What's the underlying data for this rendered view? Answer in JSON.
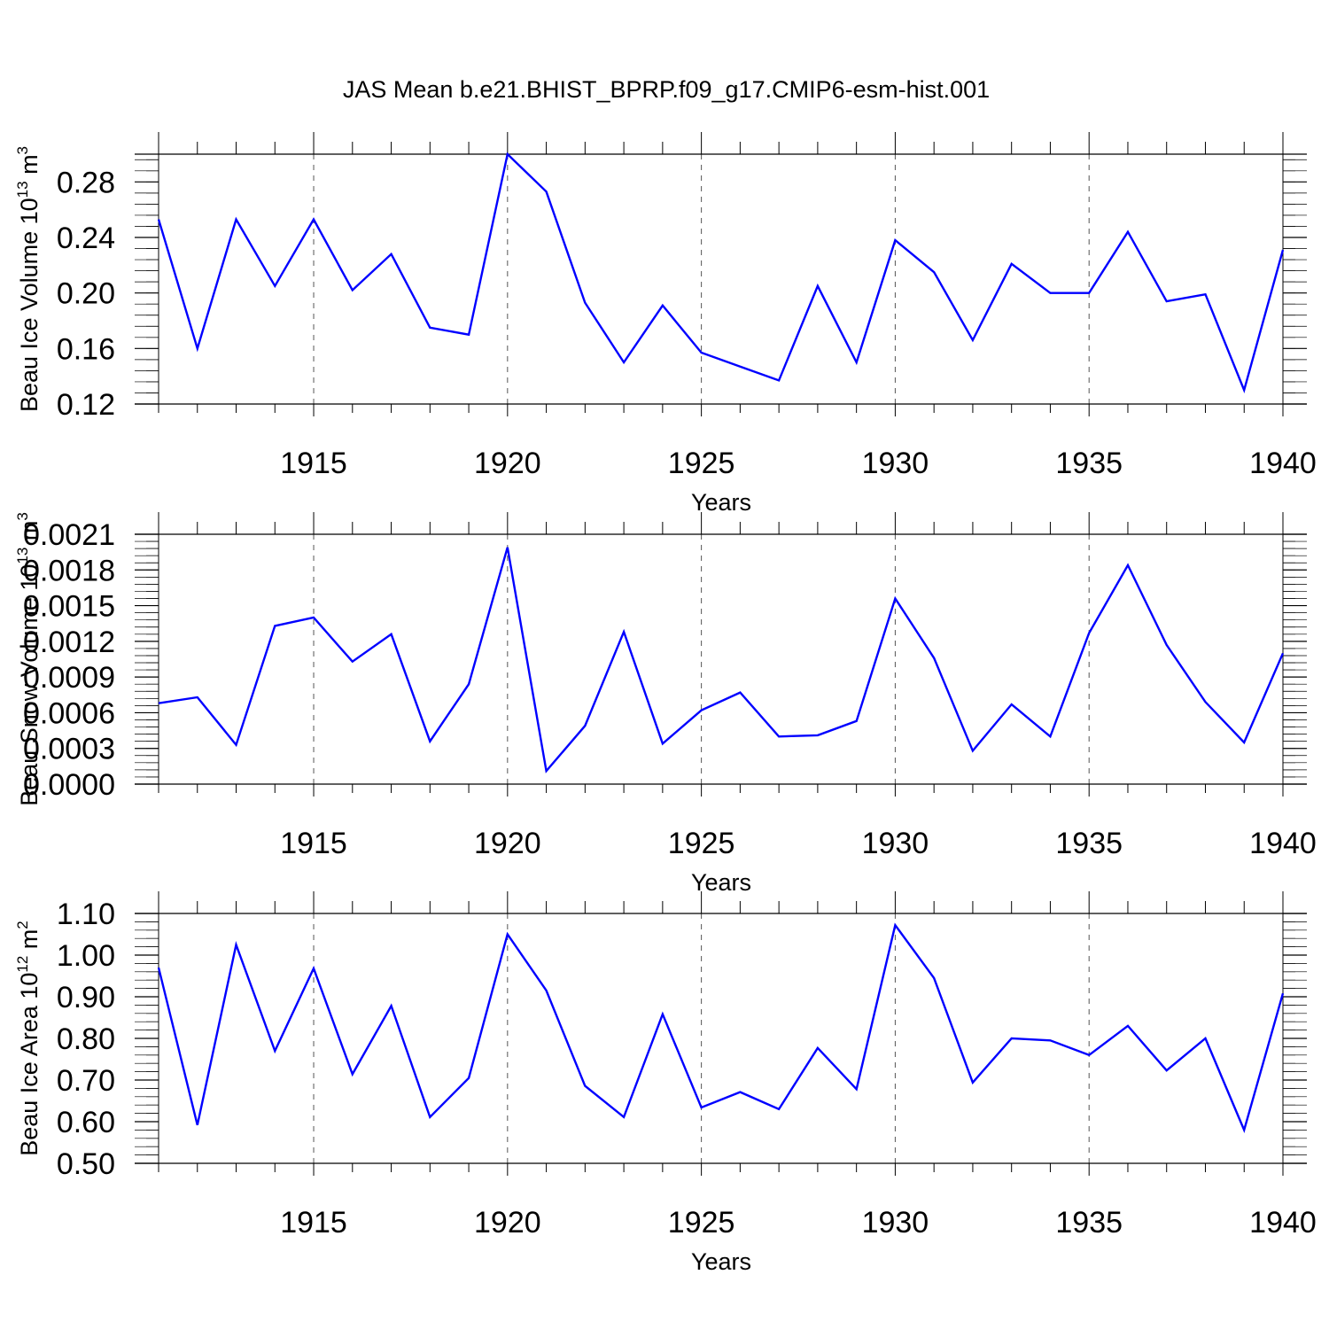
{
  "title": "JAS Mean b.e21.BHIST_BPRP.f09_g17.CMIP6-esm-hist.001",
  "line_color": "#0000ff",
  "chart_data": [
    {
      "type": "line",
      "ylabel": "Beau Ice Volume 10",
      "ylabel_sup": "13",
      "ylabel_unit": " m",
      "ylabel_unit_sup": "3",
      "xlabel": "Years",
      "xlim": [
        1911,
        1940
      ],
      "ylim": [
        0.12,
        0.3
      ],
      "yticks": [
        0.12,
        0.16,
        0.2,
        0.24,
        0.28
      ],
      "ytick_labels": [
        "0.12",
        "0.16",
        "0.20",
        "0.24",
        "0.28"
      ],
      "xticks": [
        1915,
        1920,
        1925,
        1930,
        1935,
        1940
      ],
      "xtick_labels": [
        "1915",
        "1920",
        "1925",
        "1930",
        "1935",
        "1940"
      ],
      "grid": "vertical dashed at major x ticks",
      "series": [
        {
          "x": [
            1911,
            1912,
            1913,
            1914,
            1915,
            1916,
            1917,
            1918,
            1919,
            1920,
            1921,
            1922,
            1923,
            1924,
            1925,
            1926,
            1927,
            1928,
            1929,
            1930,
            1931,
            1932,
            1933,
            1934,
            1935,
            1936,
            1937,
            1938,
            1939,
            1940
          ],
          "values": [
            0.253,
            0.16,
            0.253,
            0.205,
            0.253,
            0.202,
            0.228,
            0.175,
            0.17,
            0.3,
            0.273,
            0.193,
            0.15,
            0.191,
            0.157,
            0.147,
            0.137,
            0.205,
            0.15,
            0.238,
            0.215,
            0.166,
            0.221,
            0.2,
            0.2,
            0.244,
            0.194,
            0.199,
            0.13,
            0.231
          ]
        }
      ]
    },
    {
      "type": "line",
      "ylabel": "Beau Snow Volume 10",
      "ylabel_sup": "13",
      "ylabel_unit": " m",
      "ylabel_unit_sup": "3",
      "xlabel": "Years",
      "xlim": [
        1911,
        1940
      ],
      "ylim": [
        0.0,
        0.0021
      ],
      "yticks": [
        0.0,
        0.0003,
        0.0006,
        0.0009,
        0.0012,
        0.0015,
        0.0018,
        0.0021
      ],
      "ytick_labels": [
        "0.0000",
        "0.0003",
        "0.0006",
        "0.0009",
        "0.0012",
        "0.0015",
        "0.0018",
        "0.0021"
      ],
      "xticks": [
        1915,
        1920,
        1925,
        1930,
        1935,
        1940
      ],
      "xtick_labels": [
        "1915",
        "1920",
        "1925",
        "1930",
        "1935",
        "1940"
      ],
      "grid": "vertical dashed at major x ticks",
      "series": [
        {
          "x": [
            1911,
            1912,
            1913,
            1914,
            1915,
            1916,
            1917,
            1918,
            1919,
            1920,
            1921,
            1922,
            1923,
            1924,
            1925,
            1926,
            1927,
            1928,
            1929,
            1930,
            1931,
            1932,
            1933,
            1934,
            1935,
            1936,
            1937,
            1938,
            1939,
            1940
          ],
          "values": [
            0.00068,
            0.00073,
            0.00033,
            0.00133,
            0.0014,
            0.00103,
            0.00126,
            0.00036,
            0.00084,
            0.00199,
            0.00011,
            0.00049,
            0.00128,
            0.00034,
            0.00062,
            0.00077,
            0.0004,
            0.00041,
            0.00053,
            0.00156,
            0.00106,
            0.00028,
            0.00067,
            0.0004,
            0.00127,
            0.00184,
            0.00117,
            0.00069,
            0.00035,
            0.0011
          ]
        }
      ]
    },
    {
      "type": "line",
      "ylabel": "Beau Ice Area 10",
      "ylabel_sup": "12",
      "ylabel_unit": " m",
      "ylabel_unit_sup": "2",
      "xlabel": "Years",
      "xlim": [
        1911,
        1940
      ],
      "ylim": [
        0.5,
        1.1
      ],
      "yticks": [
        0.5,
        0.6,
        0.7,
        0.8,
        0.9,
        1.0,
        1.1
      ],
      "ytick_labels": [
        "0.50",
        "0.60",
        "0.70",
        "0.80",
        "0.90",
        "1.00",
        "1.10"
      ],
      "xticks": [
        1915,
        1920,
        1925,
        1930,
        1935,
        1940
      ],
      "xtick_labels": [
        "1915",
        "1920",
        "1925",
        "1930",
        "1935",
        "1940"
      ],
      "grid": "vertical dashed at major x ticks",
      "series": [
        {
          "x": [
            1911,
            1912,
            1913,
            1914,
            1915,
            1916,
            1917,
            1918,
            1919,
            1920,
            1921,
            1922,
            1923,
            1924,
            1925,
            1926,
            1927,
            1928,
            1929,
            1930,
            1931,
            1932,
            1933,
            1934,
            1935,
            1936,
            1937,
            1938,
            1939,
            1940
          ],
          "values": [
            0.97,
            0.592,
            1.025,
            0.77,
            0.968,
            0.714,
            0.878,
            0.611,
            0.705,
            1.05,
            0.915,
            0.686,
            0.611,
            0.858,
            0.634,
            0.671,
            0.63,
            0.777,
            0.678,
            1.072,
            0.945,
            0.694,
            0.8,
            0.795,
            0.76,
            0.83,
            0.723,
            0.8,
            0.58,
            0.908
          ]
        }
      ]
    }
  ]
}
